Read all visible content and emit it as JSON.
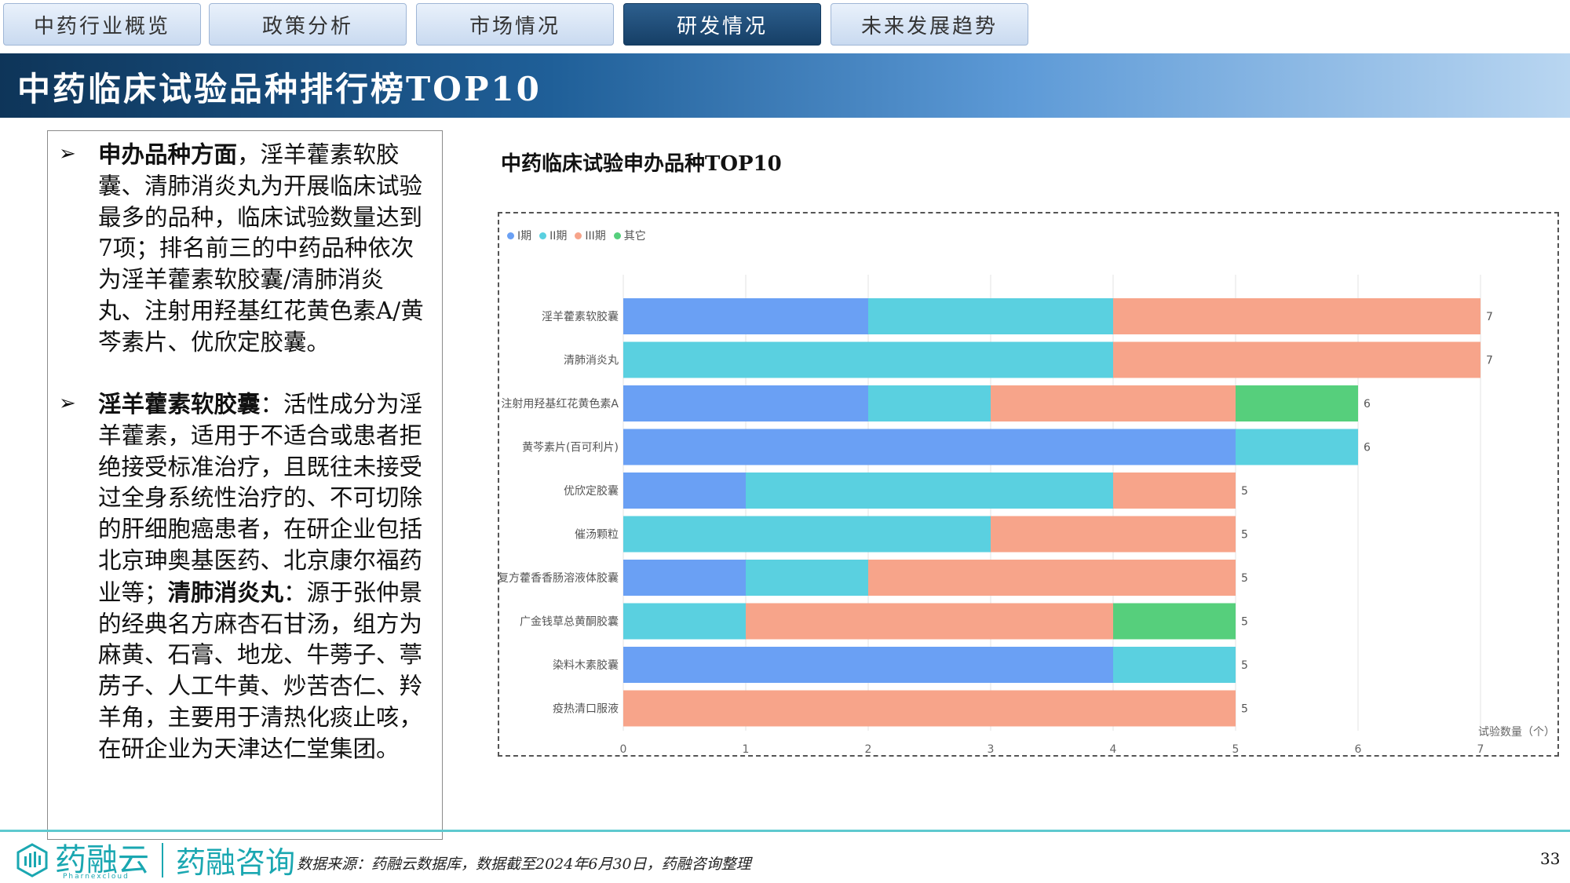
{
  "tabs": [
    {
      "label": "中药行业概览",
      "active": false
    },
    {
      "label": "政策分析",
      "active": false
    },
    {
      "label": "市场情况",
      "active": false
    },
    {
      "label": "研发情况",
      "active": true
    },
    {
      "label": "未来发展趋势",
      "active": false
    }
  ],
  "page_title": "中药临床试验品种排行榜TOP10",
  "text": {
    "b1_bold": "申办品种方面",
    "b1_body": "，淫羊藿素软胶囊、清肺消炎丸为开展临床试验最多的品种，临床试验数量达到7项；排名前三的中药品种依次为淫羊藿素软胶囊/清肺消炎丸、注射用羟基红花黄色素A/黄芩素片、优欣定胶囊。",
    "b2_bold": "淫羊藿素软胶囊",
    "b2_body1": "：活性成分为淫羊藿素，适用于不适合或患者拒绝接受标准治疗，且既往未接受过全身系统性治疗的、不可切除的肝细胞癌患者，在研企业包括北京珅奥基医药、北京康尔福药业等；",
    "b2_bold2": "清肺消炎丸",
    "b2_body2": "：源于张仲景的经典名方麻杏石甘汤，组方为麻黄、石膏、地龙、牛蒡子、葶苈子、人工牛黄、炒苦杏仁、羚羊角，主要用于清热化痰止咳，在研企业为天津达仁堂集团。"
  },
  "chart_data": {
    "type": "bar",
    "orientation": "horizontal",
    "stacked": true,
    "title": "中药临床试验申办品种TOP10",
    "xlabel": "试验数量（个）",
    "xlim": [
      0,
      7
    ],
    "xticks": [
      0,
      1,
      2,
      3,
      4,
      5,
      6,
      7
    ],
    "legend_position": "top-left",
    "grid": true,
    "categories": [
      "淫羊藿素软胶囊",
      "清肺消炎丸",
      "注射用羟基红花黄色素A",
      "黄芩素片(百可利片)",
      "优欣定胶囊",
      "催汤颗粒",
      "复方藿香香肠溶液体胶囊",
      "广金钱草总黄酮胶囊",
      "染料木素胶囊",
      "疫热清口服液"
    ],
    "series": [
      {
        "name": "I期",
        "color": "#6aa0f4",
        "values": [
          2,
          0,
          2,
          5,
          1,
          0,
          1,
          0,
          4,
          0
        ]
      },
      {
        "name": "II期",
        "color": "#5ad0e0",
        "values": [
          2,
          4,
          1,
          1,
          3,
          3,
          1,
          1,
          1,
          0
        ]
      },
      {
        "name": "III期",
        "color": "#f7a48a",
        "values": [
          3,
          3,
          2,
          0,
          1,
          2,
          3,
          3,
          0,
          5
        ]
      },
      {
        "name": "其它",
        "color": "#56cf7c",
        "values": [
          0,
          0,
          1,
          0,
          0,
          0,
          0,
          1,
          0,
          0
        ]
      }
    ],
    "totals": [
      7,
      7,
      6,
      6,
      5,
      5,
      5,
      5,
      5,
      5
    ]
  },
  "footer": {
    "logo_cn": "药融云",
    "logo_en": "Pharnexcloud",
    "logo_cn2": "药融咨询",
    "source": "数据来源：药融云数据库，数据截至2024年6月30日，药融咨询整理",
    "page_number": "33"
  }
}
